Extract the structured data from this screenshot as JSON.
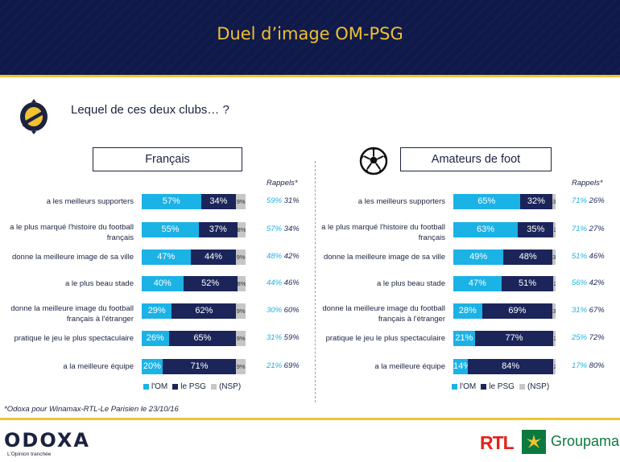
{
  "header": {
    "title": "Duel d’image OM-PSG"
  },
  "question": "Lequel de ces deux clubs… ?",
  "footnote": "*Odoxa pour Winamax-RTL-Le Parisien le 23/10/16",
  "branding": {
    "odoxa": "ODOXA",
    "odoxa_tagline": "L'Opinion tranchée",
    "rtl": "RTL",
    "groupama": "Groupama"
  },
  "colors": {
    "om": "#1bb2e6",
    "psg": "#1c2559",
    "nsp": "#c6c6c6",
    "accent": "#f2c230",
    "header_bg": "#0f1a4a"
  },
  "icons": {
    "logo": "odoxa-o-icon",
    "ball": "soccer-ball-icon"
  },
  "chart_data": [
    {
      "type": "bar",
      "stacked": true,
      "orientation": "horizontal",
      "group": "Français",
      "rappels_label": "Rappels*",
      "legend": [
        "l'OM",
        "le PSG",
        "(NSP)"
      ],
      "categories": [
        "a les meilleurs supporters",
        "a le plus marqué l'histoire du football français",
        "donne la meilleure image de sa ville",
        "a le plus beau stade",
        "donne la meilleure image du football français à l'étranger",
        "pratique le jeu le plus spectaculaire",
        "a la meilleure équipe"
      ],
      "series": [
        {
          "name": "l'OM",
          "values": [
            57,
            55,
            47,
            40,
            29,
            26,
            20
          ]
        },
        {
          "name": "le PSG",
          "values": [
            34,
            37,
            44,
            52,
            62,
            65,
            71
          ]
        },
        {
          "name": "(NSP)",
          "values": [
            9,
            8,
            9,
            8,
            9,
            9,
            9
          ]
        }
      ],
      "rappels": [
        [
          59,
          31
        ],
        [
          57,
          34
        ],
        [
          48,
          42
        ],
        [
          44,
          46
        ],
        [
          30,
          60
        ],
        [
          31,
          59
        ],
        [
          21,
          69
        ]
      ]
    },
    {
      "type": "bar",
      "stacked": true,
      "orientation": "horizontal",
      "group": "Amateurs de foot",
      "rappels_label": "Rappels*",
      "legend": [
        "l'OM",
        "le PSG",
        "(NSP)"
      ],
      "categories": [
        "a les meilleurs supporters",
        "a le plus marqué l'histoire du football français",
        "donne la meilleure image de sa ville",
        "a le plus beau stade",
        "donne la meilleure image du football français à l'étranger",
        "pratique le jeu le plus spectaculaire",
        "a la meilleure équipe"
      ],
      "series": [
        {
          "name": "l'OM",
          "values": [
            65,
            63,
            49,
            47,
            28,
            21,
            14
          ]
        },
        {
          "name": "le PSG",
          "values": [
            32,
            35,
            48,
            51,
            69,
            77,
            84
          ]
        },
        {
          "name": "(NSP)",
          "values": [
            3,
            2,
            3,
            2,
            3,
            2,
            2
          ]
        }
      ],
      "rappels": [
        [
          71,
          26
        ],
        [
          71,
          27
        ],
        [
          51,
          46
        ],
        [
          56,
          42
        ],
        [
          31,
          67
        ],
        [
          25,
          72
        ],
        [
          17,
          80
        ]
      ]
    }
  ]
}
